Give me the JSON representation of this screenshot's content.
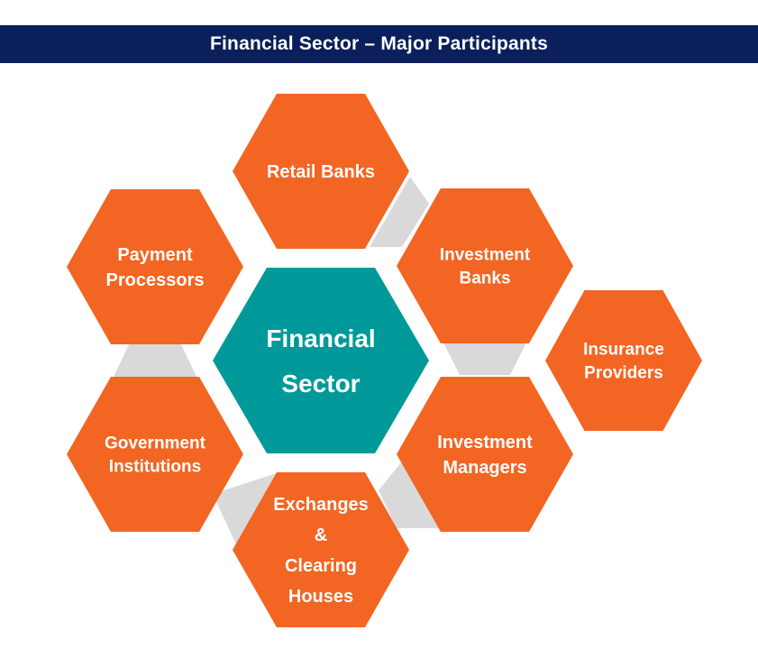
{
  "header": {
    "title": "Financial Sector – Major Participants"
  },
  "colors": {
    "title_bar": "#0a1f5c",
    "center": "#00999a",
    "participant": "#f26522",
    "connector": "#d9d9d9",
    "label": "#ffffff"
  },
  "center": {
    "lines": [
      "Financial",
      "Sector"
    ]
  },
  "participants": [
    {
      "key": "retail-banks",
      "lines": [
        "Retail Banks"
      ]
    },
    {
      "key": "investment-banks",
      "lines": [
        "Investment",
        "Banks"
      ]
    },
    {
      "key": "insurance-providers",
      "lines": [
        "Insurance",
        "Providers"
      ]
    },
    {
      "key": "investment-managers",
      "lines": [
        "Investment",
        "Managers"
      ]
    },
    {
      "key": "exchanges-clearing-houses",
      "lines": [
        "Exchanges",
        "&",
        "Clearing",
        "Houses"
      ]
    },
    {
      "key": "government-institutions",
      "lines": [
        "Government",
        "Institutions"
      ]
    },
    {
      "key": "payment-processors",
      "lines": [
        "Payment",
        "Processors"
      ]
    }
  ]
}
